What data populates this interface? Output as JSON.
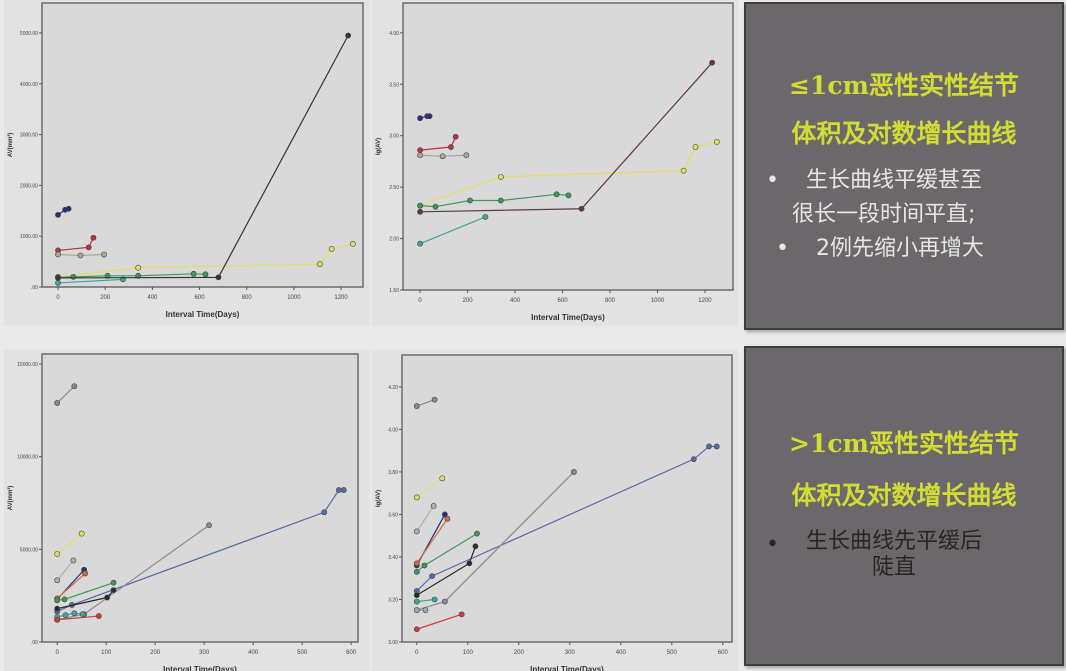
{
  "panels": {
    "top": {
      "title_line1": "≤1cm恶性实性结节",
      "title_line2": "体积及对数增长曲线",
      "bullet1_line1": "生长曲线平缓甚至",
      "bullet1_line2": "很长一段时间平直;",
      "bullet2": "2例先缩小再增大",
      "bullet_symbol": "•"
    },
    "bottom": {
      "title_line1": ">1cm恶性实性结节",
      "title_line2": "体积及对数增长曲线",
      "bullet1_line1": "生长曲线先平缓后",
      "bullet1_line2": "陡直",
      "bullet_symbol": "•"
    }
  },
  "colors": {
    "title": "#d2dc34",
    "panel_bg": "#6b676b",
    "plot_bg": "#d9d9d9"
  },
  "chart_data": [
    {
      "type": "line",
      "xlabel": "Interval Time(Days)",
      "ylabel": "AV(mm³)",
      "xlim": [
        -68,
        1293
      ],
      "ylim": [
        0,
        5590
      ],
      "xticks": [
        0,
        200,
        400,
        600,
        800,
        1000,
        1200
      ],
      "xtick_labels": [
        "0",
        "200",
        "400",
        "600",
        "800",
        "1000",
        "1200"
      ],
      "yticks": [
        0,
        1000,
        2000,
        3000,
        4000,
        5000
      ],
      "ytick_labels": [
        ".00",
        "1000.00",
        "2000.00",
        "3000.00",
        "4000.00",
        "5000.00"
      ],
      "grid": false,
      "series": [
        {
          "color": "#2a2f7a",
          "points": [
            [
              0,
              1420
            ],
            [
              30,
              1520
            ],
            [
              45,
              1540
            ]
          ]
        },
        {
          "color": "#c0303a",
          "points": [
            [
              0,
              720
            ],
            [
              130,
              780
            ],
            [
              150,
              970
            ]
          ]
        },
        {
          "color": "#a8a89c",
          "points": [
            [
              0,
              640
            ],
            [
              95,
              620
            ],
            [
              195,
              640
            ]
          ]
        },
        {
          "color": "#e0e060",
          "points": [
            [
              0,
              200
            ],
            [
              340,
              380
            ],
            [
              1110,
              450
            ],
            [
              1160,
              750
            ],
            [
              1250,
              850
            ]
          ]
        },
        {
          "color": "#3a9a5a",
          "points": [
            [
              0,
              190
            ],
            [
              65,
              200
            ],
            [
              210,
              220
            ],
            [
              340,
              220
            ],
            [
              575,
              260
            ],
            [
              625,
              250
            ]
          ]
        },
        {
          "color": "#3aa89a",
          "points": [
            [
              0,
              80
            ],
            [
              275,
              150
            ]
          ]
        },
        {
          "color": "#3a2f3a",
          "points": [
            [
              0,
              178
            ],
            [
              680,
              190
            ],
            [
              1230,
              4950
            ]
          ]
        }
      ]
    },
    {
      "type": "line",
      "xlabel": "Interval Time(Days)",
      "ylabel": "lg(AV)",
      "xlim": [
        -72,
        1318
      ],
      "ylim": [
        1.5,
        4.29
      ],
      "xticks": [
        0,
        200,
        400,
        600,
        800,
        1000,
        1200
      ],
      "xtick_labels": [
        "0",
        "200",
        "400",
        "600",
        "800",
        "1000",
        "1200"
      ],
      "yticks": [
        1.5,
        2.0,
        2.5,
        3.0,
        3.5,
        4.0
      ],
      "ytick_labels": [
        "1.50",
        "2.00",
        "2.50",
        "3.00",
        "3.50",
        "4.00"
      ],
      "grid": false,
      "series": [
        {
          "color": "#2a2f7a",
          "points": [
            [
              0,
              3.17
            ],
            [
              30,
              3.19
            ],
            [
              40,
              3.19
            ]
          ]
        },
        {
          "color": "#c0303a",
          "points": [
            [
              0,
              2.86
            ],
            [
              130,
              2.89
            ],
            [
              150,
              2.99
            ]
          ]
        },
        {
          "color": "#a8a89c",
          "points": [
            [
              0,
              2.81
            ],
            [
              95,
              2.8
            ],
            [
              195,
              2.81
            ]
          ]
        },
        {
          "color": "#e0e060",
          "points": [
            [
              0,
              2.32
            ],
            [
              340,
              2.6
            ],
            [
              1110,
              2.66
            ],
            [
              1160,
              2.89
            ],
            [
              1250,
              2.94
            ]
          ]
        },
        {
          "color": "#3a9a5a",
          "points": [
            [
              0,
              2.32
            ],
            [
              65,
              2.31
            ],
            [
              210,
              2.37
            ],
            [
              340,
              2.37
            ],
            [
              575,
              2.43
            ],
            [
              625,
              2.42
            ]
          ]
        },
        {
          "color": "#3aa89a",
          "points": [
            [
              0,
              1.95
            ],
            [
              275,
              2.21
            ]
          ]
        },
        {
          "color": "#5a3a4a",
          "points": [
            [
              0,
              2.26
            ],
            [
              680,
              2.29
            ],
            [
              1230,
              3.71
            ]
          ]
        }
      ]
    },
    {
      "type": "line",
      "xlabel": "Interval Time(Days)",
      "ylabel": "AV(mm³)",
      "xlim": [
        -31,
        614
      ],
      "ylim": [
        0,
        15540
      ],
      "xticks": [
        0,
        100,
        200,
        300,
        400,
        500,
        600
      ],
      "xtick_labels": [
        "0",
        "100",
        "200",
        "300",
        "400",
        "500",
        "600"
      ],
      "yticks": [
        0,
        5000,
        10000,
        15000
      ],
      "ytick_labels": [
        ".00",
        "5000.00",
        "10000.00",
        "15000.00"
      ],
      "grid": false,
      "series": [
        {
          "color": "#8a8a80",
          "points": [
            [
              0,
              12900
            ],
            [
              35,
              13800
            ]
          ]
        },
        {
          "color": "#e0e060",
          "points": [
            [
              0,
              4750
            ],
            [
              50,
              5850
            ]
          ]
        },
        {
          "color": "#b0b0b0",
          "points": [
            [
              0,
              3330
            ],
            [
              33,
              4400
            ]
          ]
        },
        {
          "color": "#2a2f7a",
          "points": [
            [
              0,
              2300
            ],
            [
              55,
              3900
            ]
          ]
        },
        {
          "color": "#d06a3a",
          "points": [
            [
              0,
              2350
            ],
            [
              57,
              3700
            ]
          ]
        },
        {
          "color": "#5a6aa8",
          "points": [
            [
              0,
              1650
            ],
            [
              30,
              2000
            ],
            [
              545,
              7000
            ],
            [
              575,
              8200
            ],
            [
              585,
              8200
            ]
          ]
        },
        {
          "color": "#8a8a9a",
          "points": [
            [
              0,
              1200
            ],
            [
              55,
              1500
            ],
            [
              310,
              6300
            ]
          ]
        },
        {
          "color": "#3a9a5a",
          "points": [
            [
              0,
              2250
            ],
            [
              15,
              2300
            ],
            [
              115,
              3200
            ]
          ]
        },
        {
          "color": "#2a2a2a",
          "points": [
            [
              0,
              1800
            ],
            [
              102,
              2400
            ],
            [
              115,
              2800
            ]
          ]
        },
        {
          "color": "#3aa89a",
          "points": [
            [
              0,
              1350
            ],
            [
              17,
              1450
            ],
            [
              35,
              1550
            ],
            [
              52,
              1500
            ]
          ]
        },
        {
          "color": "#d03a3a",
          "points": [
            [
              0,
              1200
            ],
            [
              85,
              1400
            ]
          ]
        }
      ]
    },
    {
      "type": "line",
      "xlabel": "Interval Time(Days)",
      "ylabel": "lg(AV)",
      "xlim": [
        -29,
        618
      ],
      "ylim": [
        3.0,
        4.35
      ],
      "xticks": [
        0,
        100,
        200,
        300,
        400,
        500,
        600
      ],
      "xtick_labels": [
        "0",
        "100",
        "200",
        "300",
        "400",
        "500",
        "600"
      ],
      "yticks": [
        3.0,
        3.2,
        3.4,
        3.6,
        3.8,
        4.0,
        4.2
      ],
      "ytick_labels": [
        "3.00",
        "3.20",
        "3.40",
        "3.60",
        "3.80",
        "4.00",
        "4.20"
      ],
      "grid": false,
      "series": [
        {
          "color": "#8a8a80",
          "points": [
            [
              0,
              4.11
            ],
            [
              35,
              4.14
            ]
          ]
        },
        {
          "color": "#e0e060",
          "points": [
            [
              0,
              3.68
            ],
            [
              50,
              3.77
            ]
          ]
        },
        {
          "color": "#b0b0b0",
          "points": [
            [
              0,
              3.52
            ],
            [
              33,
              3.64
            ]
          ]
        },
        {
          "color": "#2a2f7a",
          "points": [
            [
              0,
              3.36
            ],
            [
              55,
              3.6
            ]
          ]
        },
        {
          "color": "#d06a3a",
          "points": [
            [
              0,
              3.37
            ],
            [
              60,
              3.58
            ]
          ]
        },
        {
          "color": "#5a6aa8",
          "points": [
            [
              0,
              3.24
            ],
            [
              30,
              3.31
            ],
            [
              543,
              3.86
            ],
            [
              573,
              3.92
            ],
            [
              588,
              3.92
            ]
          ]
        },
        {
          "color": "#8a8a9a",
          "points": [
            [
              0,
              3.15
            ],
            [
              55,
              3.19
            ],
            [
              308,
              3.8
            ]
          ]
        },
        {
          "color": "#3a9a5a",
          "points": [
            [
              0,
              3.33
            ],
            [
              15,
              3.36
            ],
            [
              118,
              3.51
            ]
          ]
        },
        {
          "color": "#2a2a2a",
          "points": [
            [
              0,
              3.22
            ],
            [
              103,
              3.37
            ],
            [
              115,
              3.45
            ]
          ]
        },
        {
          "color": "#3aa89a",
          "points": [
            [
              0,
              3.19
            ],
            [
              35,
              3.2
            ]
          ]
        },
        {
          "color": "#9aaab0",
          "points": [
            [
              0,
              3.15
            ],
            [
              17,
              3.15
            ]
          ]
        },
        {
          "color": "#d03a3a",
          "points": [
            [
              0,
              3.06
            ],
            [
              88,
              3.13
            ]
          ]
        }
      ]
    }
  ]
}
